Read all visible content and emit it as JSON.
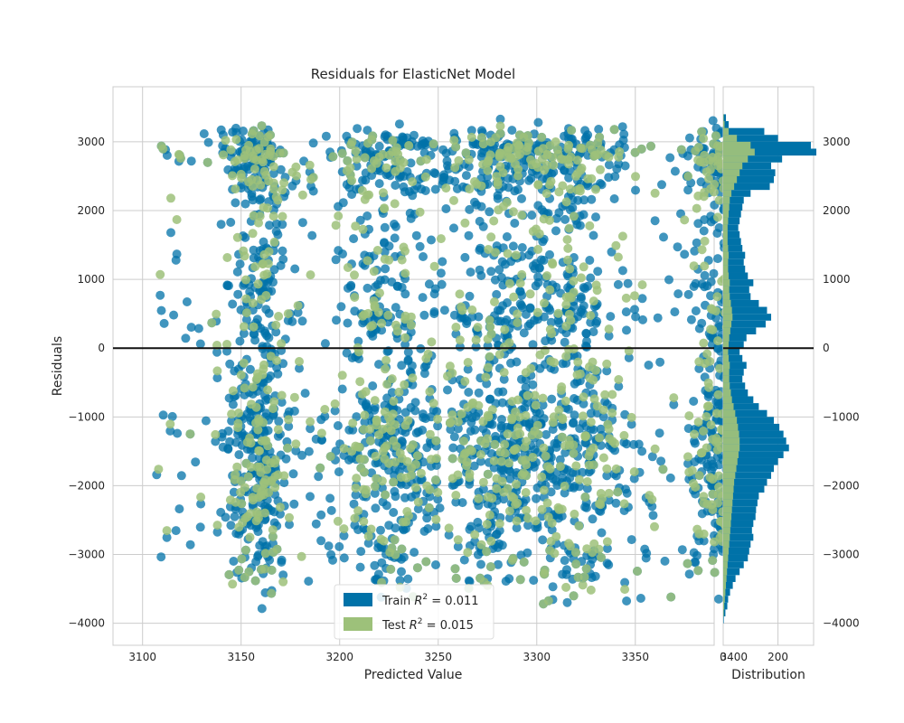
{
  "chart_data": {
    "type": "scatter",
    "title": "Residuals for ElasticNet Model",
    "xlabel": "Predicted Value",
    "ylabel": "Residuals",
    "xlim": [
      3085,
      3390
    ],
    "ylim": [
      -4320,
      3800
    ],
    "xticks": [
      "3100",
      "3150",
      "3200",
      "3250",
      "3300",
      "3350",
      "3400"
    ],
    "yticks": [
      "−4000",
      "−3000",
      "−2000",
      "−1000",
      "0",
      "1000",
      "2000",
      "3000"
    ],
    "zero_line": 0,
    "grid": true,
    "legend_position": "bottom-center",
    "colors": {
      "train": "#0072a8",
      "test": "#9dc17a",
      "zero_line": "#111111",
      "grid": "#cccccc"
    },
    "clusters_x": [
      3158,
      3225,
      3282,
      3318,
      3395
    ],
    "series": [
      {
        "name": "Train",
        "label_prefix": "Train",
        "r2": "0.011"
      },
      {
        "name": "Test",
        "label_prefix": "Test",
        "r2": "0.015"
      }
    ],
    "hist": {
      "xlabel": "Distribution",
      "xticks": [
        "0",
        "200"
      ],
      "xlim": [
        0,
        330
      ],
      "bin_centers": [
        -3950,
        -3850,
        -3750,
        -3650,
        -3550,
        -3450,
        -3350,
        -3250,
        -3150,
        -3050,
        -2950,
        -2850,
        -2750,
        -2650,
        -2550,
        -2450,
        -2350,
        -2250,
        -2150,
        -2050,
        -1950,
        -1850,
        -1750,
        -1650,
        -1550,
        -1450,
        -1350,
        -1250,
        -1150,
        -1050,
        -950,
        -850,
        -750,
        -650,
        -550,
        -450,
        -350,
        -250,
        -150,
        -50,
        50,
        150,
        250,
        350,
        450,
        550,
        650,
        750,
        850,
        950,
        1050,
        1150,
        1250,
        1350,
        1450,
        1550,
        1650,
        1750,
        1850,
        1950,
        2050,
        2150,
        2250,
        2350,
        2450,
        2550,
        2650,
        2750,
        2850,
        2950,
        3050,
        3150,
        3250,
        3350
      ],
      "train": [
        2,
        8,
        15,
        18,
        25,
        35,
        45,
        60,
        75,
        90,
        95,
        100,
        110,
        105,
        110,
        118,
        120,
        125,
        130,
        150,
        160,
        175,
        185,
        200,
        220,
        240,
        230,
        220,
        205,
        185,
        160,
        130,
        110,
        90,
        80,
        70,
        75,
        85,
        70,
        60,
        75,
        85,
        120,
        155,
        175,
        160,
        130,
        100,
        95,
        110,
        90,
        80,
        75,
        80,
        70,
        65,
        60,
        55,
        60,
        65,
        70,
        75,
        100,
        170,
        185,
        190,
        175,
        215,
        340,
        320,
        200,
        150,
        20,
        10
      ],
      "test": [
        0,
        2,
        4,
        6,
        8,
        10,
        12,
        14,
        16,
        18,
        20,
        22,
        24,
        26,
        28,
        30,
        32,
        34,
        36,
        38,
        40,
        44,
        48,
        52,
        56,
        60,
        60,
        58,
        54,
        50,
        44,
        38,
        32,
        28,
        24,
        22,
        22,
        24,
        20,
        18,
        20,
        22,
        26,
        30,
        34,
        32,
        28,
        24,
        22,
        24,
        20,
        18,
        18,
        20,
        18,
        16,
        16,
        16,
        18,
        20,
        22,
        24,
        30,
        40,
        50,
        60,
        70,
        90,
        115,
        100,
        50,
        20,
        5,
        2
      ]
    }
  }
}
